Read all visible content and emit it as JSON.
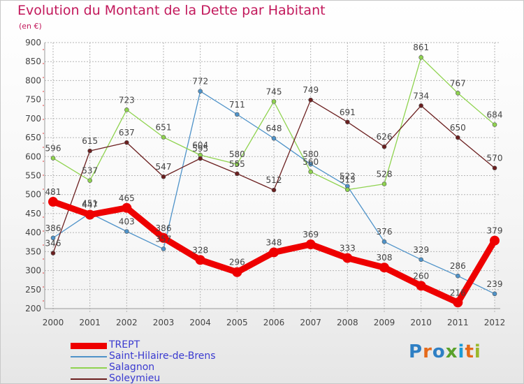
{
  "title": "Evolution du Montant de la Dette par Habitant",
  "subtitle": "(en €)",
  "logo": {
    "text": "Proxiti",
    "letter_colors": [
      "#2e7fc4",
      "#e56a1b",
      "#2e7fc4",
      "#5aa12b",
      "#1b9bd8",
      "#e56a1b",
      "#9ab82a"
    ]
  },
  "chart_data": {
    "type": "line",
    "title": "Evolution du Montant de la Dette par Habitant",
    "subtitle": "(en €)",
    "x": [
      "2000",
      "2001",
      "2002",
      "2003",
      "2004",
      "2005",
      "2006",
      "2007",
      "2008",
      "2009",
      "2010",
      "2011",
      "2012"
    ],
    "ylim": [
      200,
      900
    ],
    "yticks": [
      200,
      250,
      300,
      350,
      400,
      450,
      500,
      550,
      600,
      650,
      700,
      750,
      800,
      850,
      900
    ],
    "grid": true,
    "legend_position": "bottom-left",
    "series": [
      {
        "name": "TREPT",
        "color": "#ee0000",
        "width": 9,
        "values": [
          481,
          447,
          465,
          386,
          328,
          296,
          348,
          369,
          333,
          308,
          260,
          216,
          379
        ]
      },
      {
        "name": "Saint-Hilaire-de-Brens",
        "color": "#4f93c9",
        "width": 1.3,
        "values": [
          386,
          451,
          403,
          357,
          772,
          711,
          648,
          580,
          522,
          376,
          329,
          286,
          239
        ]
      },
      {
        "name": "Salagnon",
        "color": "#8fd34f",
        "width": 1.3,
        "values": [
          596,
          537,
          723,
          651,
          604,
          580,
          745,
          560,
          513,
          528,
          861,
          767,
          684
        ]
      },
      {
        "name": "Soleymieu",
        "color": "#6b1f1f",
        "width": 1.3,
        "values": [
          346,
          615,
          637,
          547,
          595,
          555,
          512,
          749,
          691,
          626,
          734,
          650,
          570
        ]
      }
    ]
  }
}
